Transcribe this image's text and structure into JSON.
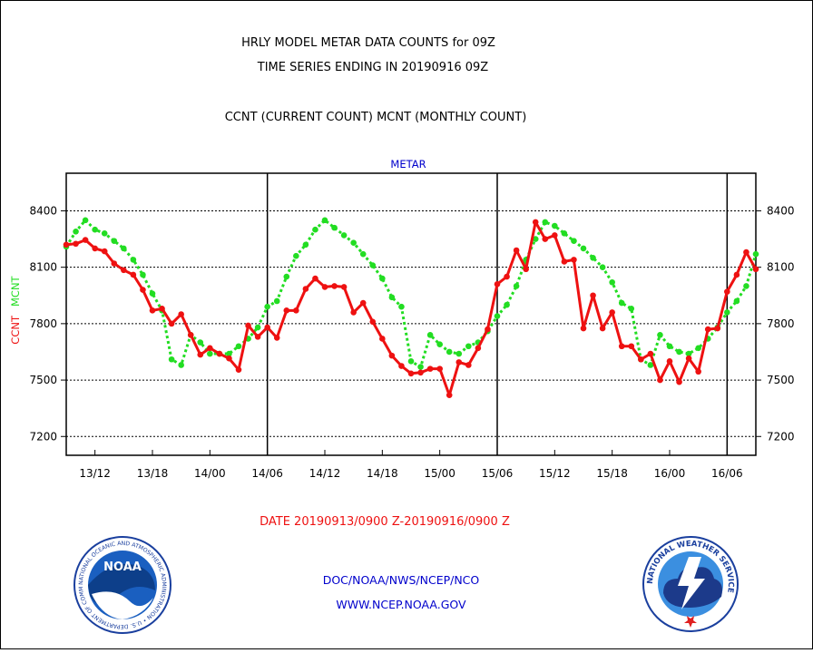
{
  "header": {
    "line1": "HRLY MODEL METAR DATA COUNTS for 09Z",
    "line2": "TIME SERIES ENDING IN 20190916 09Z",
    "line3": "CCNT (CURRENT COUNT) MCNT (MONTHLY COUNT)"
  },
  "footer": {
    "date_range": "DATE 20190913/0900 Z-20190916/0900 Z",
    "org": "DOC/NOAA/NWS/NCEP/NCO",
    "url": "WWW.NCEP.NOAA.GOV"
  },
  "logos": {
    "noaa_text": "NOAA",
    "noaa_ring": "NATIONAL OCEANIC AND ATMOSPHERIC ADMINISTRATION • U.S. DEPARTMENT OF COMMERCE •",
    "nws_ring": "NATIONAL WEATHER SERVICE"
  },
  "colors": {
    "ccnt": "#ee1111",
    "mcnt": "#22dd22",
    "title_blue": "#0000cc",
    "footer_red": "#ee1111",
    "footer_blue": "#0000cc"
  },
  "chart_data": {
    "type": "line",
    "title": "METAR",
    "ylabel_ccnt": "CCNT",
    "ylabel_mcnt": "MCNT",
    "ylim": [
      7100,
      8600
    ],
    "yticks": [
      7200,
      7500,
      7800,
      8100,
      8400
    ],
    "ytick_labels": [
      "7200",
      "7500",
      "7800",
      "8100",
      "8400"
    ],
    "xticks": [
      4,
      10,
      16,
      22,
      28,
      34,
      40,
      46,
      52,
      58,
      64,
      70
    ],
    "xtick_labels": [
      "13/12",
      "13/18",
      "14/00",
      "14/06",
      "14/12",
      "14/18",
      "15/00",
      "15/06",
      "15/12",
      "15/18",
      "16/00",
      "16/06"
    ],
    "xlim": [
      1,
      73
    ],
    "day_boundaries": [
      22,
      46,
      70
    ],
    "x": [
      1,
      2,
      3,
      4,
      5,
      6,
      7,
      8,
      9,
      10,
      11,
      12,
      13,
      14,
      15,
      16,
      17,
      18,
      19,
      20,
      21,
      22,
      23,
      24,
      25,
      26,
      27,
      28,
      29,
      30,
      31,
      32,
      33,
      34,
      35,
      36,
      37,
      38,
      39,
      40,
      41,
      42,
      43,
      44,
      45,
      46,
      47,
      48,
      49,
      50,
      51,
      52,
      53,
      54,
      55,
      56,
      57,
      58,
      59,
      60,
      61,
      62,
      63,
      64,
      65,
      66,
      67,
      68,
      69,
      70,
      71,
      72,
      73
    ],
    "series": [
      {
        "name": "CCNT",
        "values": [
          8220,
          8225,
          8245,
          8200,
          8185,
          8120,
          8085,
          8060,
          7980,
          7870,
          7880,
          7800,
          7850,
          7740,
          7635,
          7670,
          7640,
          7615,
          7555,
          7790,
          7730,
          7780,
          7725,
          7870,
          7870,
          7985,
          8040,
          7995,
          8000,
          7995,
          7860,
          7910,
          7810,
          7720,
          7630,
          7575,
          7535,
          7540,
          7560,
          7560,
          7420,
          7595,
          7580,
          7670,
          7770,
          8010,
          8050,
          8190,
          8090,
          8340,
          8250,
          8270,
          8130,
          8140,
          7775,
          7950,
          7775,
          7860,
          7680,
          7680,
          7610,
          7640,
          7500,
          7600,
          7490,
          7615,
          7545,
          7770,
          7775,
          7970,
          8060,
          8180,
          8090
        ]
      },
      {
        "name": "MCNT",
        "values": [
          8210,
          8290,
          8350,
          8300,
          8280,
          8240,
          8200,
          8140,
          8060,
          7960,
          7870,
          7610,
          7580,
          7740,
          7700,
          7640,
          7640,
          7640,
          7680,
          7720,
          7780,
          7890,
          7920,
          8050,
          8160,
          8220,
          8300,
          8350,
          8310,
          8270,
          8230,
          8170,
          8110,
          8040,
          7940,
          7890,
          7600,
          7570,
          7740,
          7690,
          7650,
          7640,
          7680,
          7700,
          7760,
          7840,
          7900,
          8000,
          8140,
          8250,
          8340,
          8320,
          8280,
          8240,
          8200,
          8150,
          8100,
          8020,
          7910,
          7880,
          7610,
          7580,
          7740,
          7680,
          7650,
          7640,
          7670,
          7720,
          7780,
          7860,
          7920,
          8000,
          8170
        ]
      }
    ]
  }
}
